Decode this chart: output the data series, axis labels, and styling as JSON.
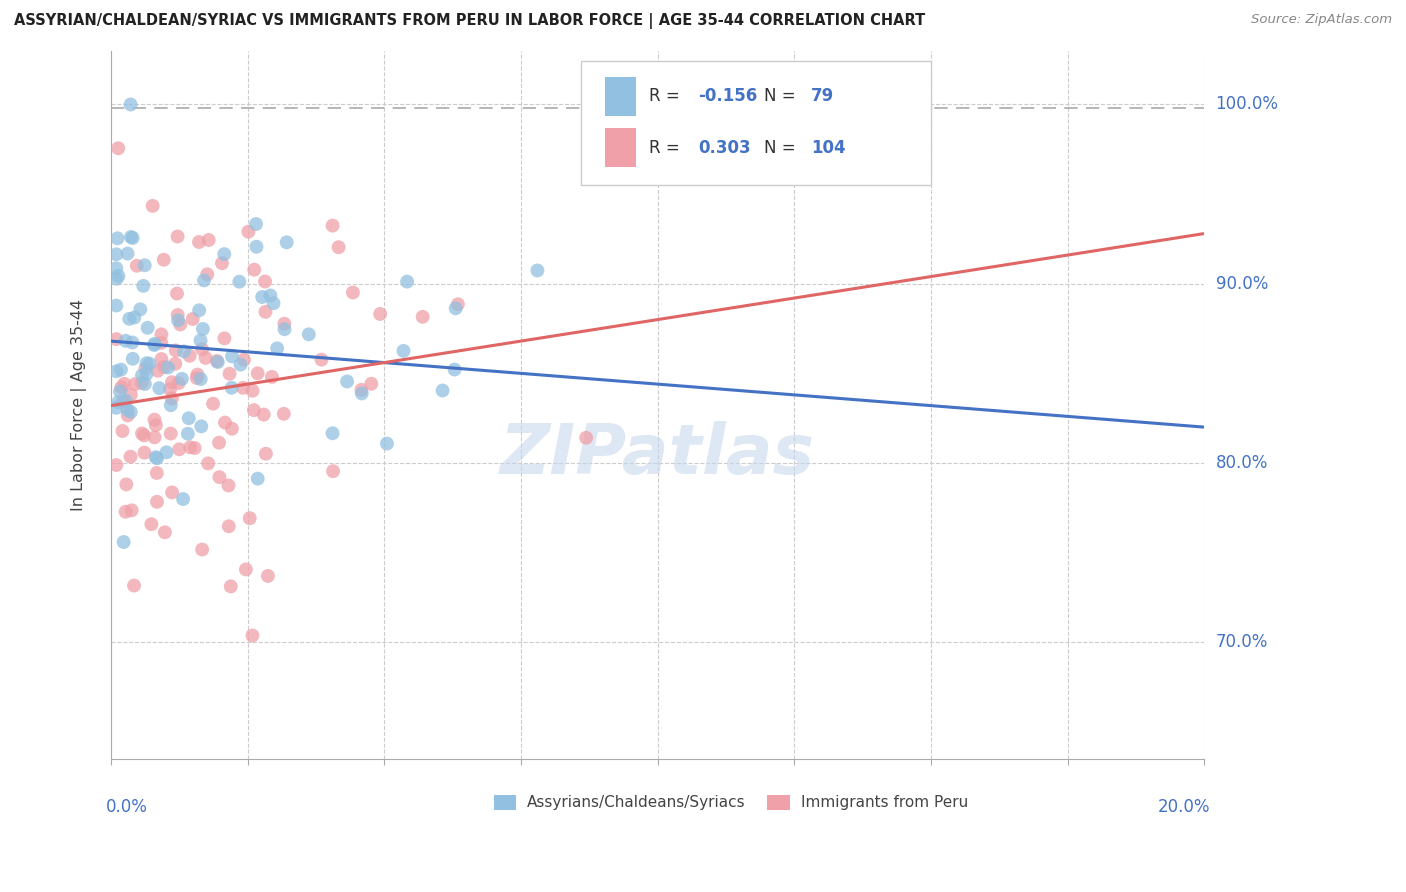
{
  "title": "ASSYRIAN/CHALDEAN/SYRIAC VS IMMIGRANTS FROM PERU IN LABOR FORCE | AGE 35-44 CORRELATION CHART",
  "source": "Source: ZipAtlas.com",
  "ylabel": "In Labor Force | Age 35-44",
  "xlim": [
    0.0,
    0.2
  ],
  "ylim": [
    0.635,
    1.03
  ],
  "y_ticks": [
    0.7,
    0.8,
    0.9,
    1.0
  ],
  "y_tick_labels": [
    "70.0%",
    "80.0%",
    "90.0%",
    "100.0%"
  ],
  "x_ticks": [
    0.0,
    0.025,
    0.05,
    0.075,
    0.1,
    0.125,
    0.15,
    0.175,
    0.2
  ],
  "R_blue": -0.156,
  "N_blue": 79,
  "R_pink": 0.303,
  "N_pink": 104,
  "blue_color": "#92c0e0",
  "pink_color": "#f0a0a8",
  "blue_line_color": "#4472c4",
  "pink_line_color": "#e06666",
  "legend_label_blue": "Assyrians/Chaldeans/Syriacs",
  "legend_label_pink": "Immigrants from Peru",
  "blue_trend": [
    0.868,
    0.82
  ],
  "pink_trend": [
    0.832,
    0.928
  ],
  "dashed_line_y": 0.998,
  "watermark_color": "#c8d8ed",
  "seed_blue": 42,
  "seed_pink": 123
}
